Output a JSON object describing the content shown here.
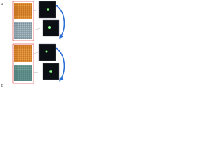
{
  "figure": {
    "panels": [
      {
        "label": "A"
      },
      {
        "label": "B"
      }
    ]
  }
}
